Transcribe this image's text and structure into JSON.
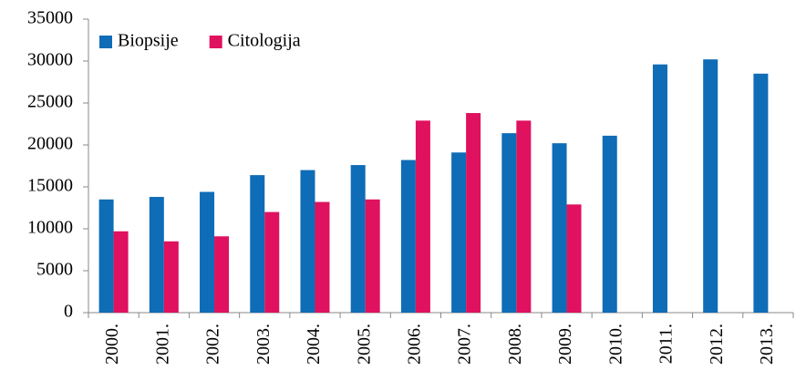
{
  "chart_data": {
    "type": "bar",
    "categories": [
      "2000.",
      "2001.",
      "2002.",
      "2003.",
      "2004.",
      "2005.",
      "2006.",
      "2007.",
      "2008.",
      "2009.",
      "2010.",
      "2011.",
      "2012.",
      "2013."
    ],
    "series": [
      {
        "name": "Biopsije",
        "color": "#0f6cb6",
        "values": [
          13500,
          13800,
          14400,
          16400,
          17000,
          17600,
          18200,
          19100,
          21400,
          20200,
          21100,
          29600,
          30200,
          28500
        ]
      },
      {
        "name": "Citologija",
        "color": "#e0115f",
        "values": [
          9700,
          8500,
          9100,
          12000,
          13200,
          13500,
          22900,
          23800,
          22900,
          12900,
          null,
          null,
          null,
          null
        ]
      }
    ],
    "ylim": [
      0,
      35000
    ],
    "yticks": [
      0,
      5000,
      10000,
      15000,
      20000,
      25000,
      30000,
      35000
    ],
    "grid": false,
    "legend": "top-left"
  }
}
